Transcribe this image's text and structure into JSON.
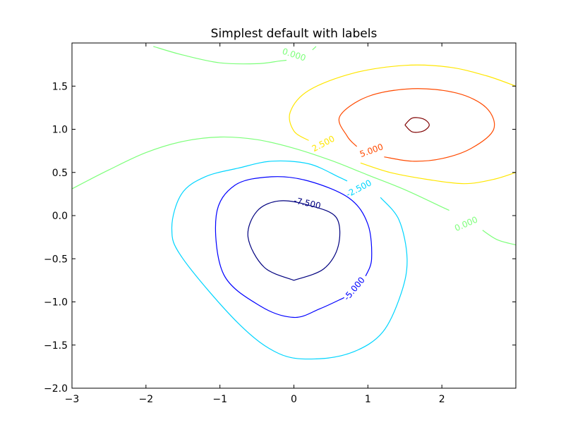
{
  "chart_data": {
    "type": "contour",
    "title": "Simplest default with labels",
    "xlabel": "",
    "ylabel": "",
    "xlim": [
      -3,
      3
    ],
    "ylim": [
      -2,
      2
    ],
    "x_ticks": [
      -3,
      -2,
      -1,
      0,
      1,
      2
    ],
    "x_tick_labels": [
      "−3",
      "−2",
      "−1",
      "0",
      "1",
      "2"
    ],
    "y_ticks": [
      -2.0,
      -1.5,
      -1.0,
      -0.5,
      0.0,
      0.5,
      1.0,
      1.5
    ],
    "y_tick_labels": [
      "−2.0",
      "−1.5",
      "−1.0",
      "−0.5",
      "0.0",
      "0.5",
      "1.0",
      "1.5"
    ],
    "grid": false,
    "colormap": "jet",
    "levels": [
      {
        "value": -7.5,
        "label": "-7.500",
        "color": "#00007f",
        "paths": [
          [
            [
              0.0,
              -0.75
            ],
            [
              -0.4,
              -0.6
            ],
            [
              -0.62,
              -0.25
            ],
            [
              -0.5,
              0.05
            ],
            [
              -0.2,
              0.17
            ],
            [
              0.2,
              0.12
            ],
            [
              0.57,
              -0.02
            ],
            [
              0.6,
              -0.35
            ],
            [
              0.4,
              -0.62
            ],
            [
              0.0,
              -0.75
            ]
          ]
        ],
        "label_pos": [
          0.18,
          0.14
        ],
        "label_angle": 12
      },
      {
        "value": -5.0,
        "label": "-5.000",
        "color": "#0000ff",
        "paths": [
          [
            [
              0.68,
              -0.95
            ],
            [
              0.35,
              -1.08
            ],
            [
              0.0,
              -1.18
            ],
            [
              -0.45,
              -1.05
            ],
            [
              -0.95,
              -0.68
            ],
            [
              -1.05,
              0.0
            ],
            [
              -0.8,
              0.35
            ],
            [
              -0.3,
              0.45
            ],
            [
              0.2,
              0.4
            ],
            [
              0.75,
              0.2
            ],
            [
              1.0,
              -0.1
            ],
            [
              1.05,
              -0.5
            ],
            [
              0.97,
              -0.7
            ]
          ]
        ],
        "label_pos": [
          0.82,
          -0.85
        ],
        "label_angle": -50
      },
      {
        "value": -2.5,
        "label": "-2.500",
        "color": "#00d5ff",
        "paths": [
          [
            [
              1.17,
              0.21
            ],
            [
              1.42,
              -0.05
            ],
            [
              1.53,
              -0.5
            ],
            [
              1.45,
              -0.9
            ],
            [
              1.2,
              -1.35
            ],
            [
              0.8,
              -1.58
            ],
            [
              0.3,
              -1.66
            ],
            [
              -0.2,
              -1.6
            ],
            [
              -0.75,
              -1.25
            ],
            [
              -1.5,
              -0.5
            ],
            [
              -1.65,
              -0.15
            ],
            [
              -1.52,
              0.25
            ],
            [
              -1.2,
              0.45
            ],
            [
              -0.75,
              0.55
            ],
            [
              -0.3,
              0.63
            ],
            [
              0.2,
              0.6
            ],
            [
              0.6,
              0.45
            ],
            [
              0.72,
              0.4
            ]
          ]
        ],
        "label_pos": [
          0.88,
          0.31
        ],
        "label_angle": -28
      },
      {
        "value": 0.0,
        "label": "0.000",
        "color": "#7dff7a",
        "paths": [
          [
            [
              -3.0,
              0.31
            ],
            [
              -2.5,
              0.53
            ],
            [
              -2.0,
              0.73
            ],
            [
              -1.5,
              0.86
            ],
            [
              -1.0,
              0.91
            ],
            [
              -0.5,
              0.88
            ],
            [
              0.0,
              0.78
            ],
            [
              0.5,
              0.64
            ],
            [
              1.0,
              0.47
            ],
            [
              1.5,
              0.3
            ],
            [
              2.0,
              0.1
            ],
            [
              2.1,
              0.06
            ]
          ],
          [
            [
              2.55,
              -0.17
            ],
            [
              2.75,
              -0.28
            ],
            [
              3.0,
              -0.34
            ]
          ],
          [
            [
              -1.9,
              1.96
            ],
            [
              -1.5,
              1.86
            ],
            [
              -1.0,
              1.77
            ],
            [
              -0.5,
              1.76
            ],
            [
              -0.2,
              1.79
            ],
            [
              -0.1,
              1.8
            ]
          ],
          [
            [
              0.25,
              1.92
            ],
            [
              0.3,
              1.96
            ]
          ]
        ],
        "label_pos": [
          2.33,
          -0.1
        ],
        "label_angle": -24
      },
      {
        "value": 0.0,
        "label": "0.000",
        "color": "#7dff7a",
        "paths": [],
        "label_pos": [
          0.0,
          1.86
        ],
        "label_angle": 18
      },
      {
        "value": 2.5,
        "label": "2.500",
        "color": "#ffe600",
        "paths": [
          [
            [
              0.2,
              0.87
            ],
            [
              0.0,
              0.98
            ],
            [
              -0.05,
              1.2
            ],
            [
              0.2,
              1.45
            ],
            [
              0.8,
              1.65
            ],
            [
              1.5,
              1.74
            ],
            [
              2.1,
              1.72
            ],
            [
              2.6,
              1.62
            ],
            [
              3.0,
              1.5
            ]
          ],
          [
            [
              0.9,
              0.61
            ],
            [
              1.3,
              0.5
            ],
            [
              1.8,
              0.42
            ],
            [
              2.3,
              0.37
            ],
            [
              2.7,
              0.42
            ],
            [
              3.0,
              0.5
            ]
          ]
        ],
        "label_pos": [
          0.4,
          0.83
        ],
        "label_angle": -28
      },
      {
        "value": 5.0,
        "label": "5.000",
        "color": "#ff4a00",
        "paths": [
          [
            [
              1.22,
              0.68
            ],
            [
              1.6,
              0.63
            ],
            [
              2.0,
              0.66
            ],
            [
              2.4,
              0.78
            ],
            [
              2.7,
              1.0
            ],
            [
              2.6,
              1.25
            ],
            [
              2.2,
              1.42
            ],
            [
              1.6,
              1.47
            ],
            [
              1.0,
              1.38
            ],
            [
              0.62,
              1.15
            ],
            [
              0.72,
              0.92
            ],
            [
              0.85,
              0.8
            ]
          ]
        ],
        "label_pos": [
          1.05,
          0.75
        ],
        "label_angle": -20
      },
      {
        "value": 7.5,
        "label": "",
        "color": "#7f0000",
        "paths": [
          [
            [
              1.5,
              1.05
            ],
            [
              1.6,
              1.13
            ],
            [
              1.75,
              1.12
            ],
            [
              1.83,
              1.05
            ],
            [
              1.75,
              0.98
            ],
            [
              1.6,
              0.97
            ],
            [
              1.5,
              1.05
            ]
          ]
        ],
        "label_pos": null,
        "label_angle": 0
      }
    ]
  }
}
